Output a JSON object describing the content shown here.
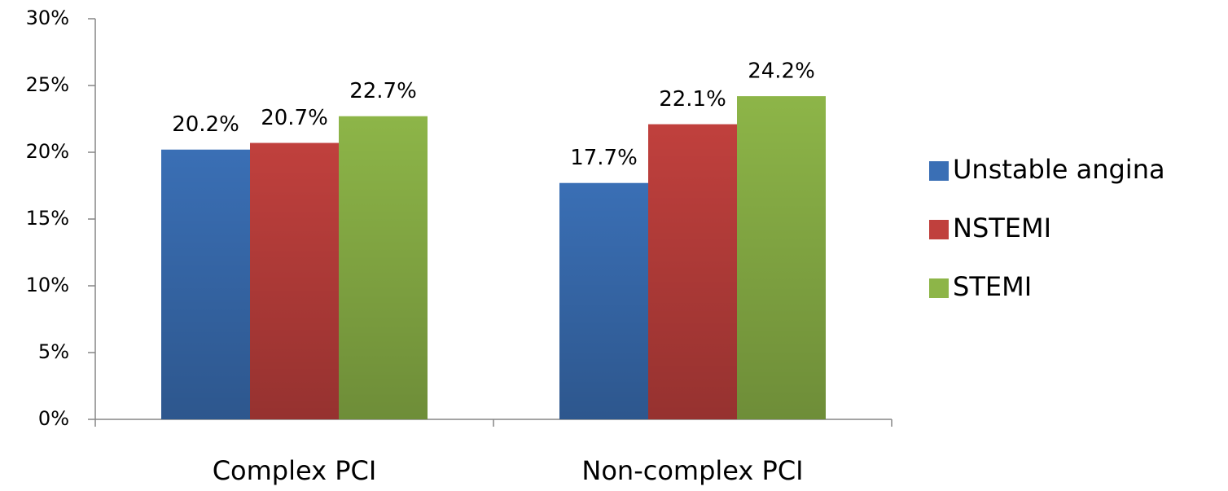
{
  "chart_data": {
    "type": "bar",
    "categories": [
      "Complex PCI",
      "Non-complex PCI"
    ],
    "series": [
      {
        "name": "Unstable angina",
        "color": "#3a6fb5",
        "values": [
          20.2,
          17.7
        ],
        "value_labels": [
          "20.2%",
          "17.7%"
        ]
      },
      {
        "name": "NSTEMI",
        "color": "#c0403d",
        "values": [
          20.7,
          22.1
        ],
        "value_labels": [
          "20.7%",
          "22.1%"
        ]
      },
      {
        "name": "STEMI",
        "color": "#8db548",
        "values": [
          22.7,
          24.2
        ],
        "value_labels": [
          "22.7%",
          "24.2%"
        ]
      }
    ],
    "ylim": [
      0,
      30
    ],
    "yticks": [
      {
        "value": 0,
        "label": "0%"
      },
      {
        "value": 5,
        "label": "5%"
      },
      {
        "value": 10,
        "label": "10%"
      },
      {
        "value": 15,
        "label": "15%"
      },
      {
        "value": 20,
        "label": "20%"
      },
      {
        "value": 25,
        "label": "25%"
      },
      {
        "value": 30,
        "label": "30%"
      }
    ],
    "grid": false,
    "legend": "right"
  }
}
